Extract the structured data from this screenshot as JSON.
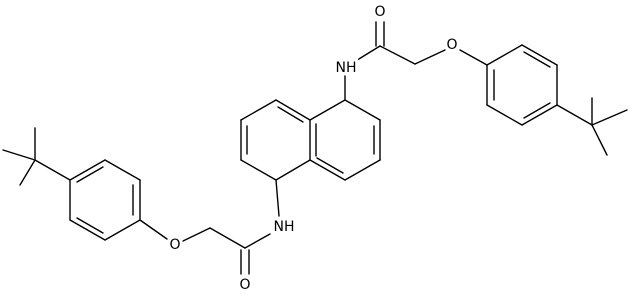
{
  "atoms": [
    {
      "label": "O"
    },
    {
      "label": "NH"
    },
    {
      "label": "O"
    },
    {
      "label": "NH"
    },
    {
      "label": "O"
    },
    {
      "label": "O"
    }
  ]
}
